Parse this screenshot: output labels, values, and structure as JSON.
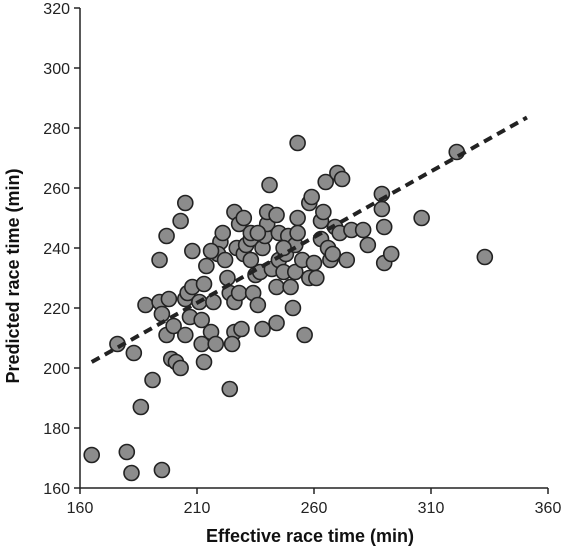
{
  "chart_data": {
    "type": "scatter",
    "title": "",
    "xlabel": "Effective race time (min)",
    "ylabel": "Predicted race time (min)",
    "xlim": [
      160,
      360
    ],
    "ylim": [
      160,
      320
    ],
    "xticks": [
      160,
      210,
      260,
      310,
      360
    ],
    "yticks": [
      160,
      180,
      200,
      220,
      240,
      260,
      280,
      300,
      320
    ],
    "grid": false,
    "legend": "none",
    "point_color": "#8c8c8c",
    "point_edge_color": "#222222",
    "trendline": {
      "style": "dashed",
      "x": [
        165,
        351
      ],
      "y": [
        202,
        283.5
      ]
    },
    "points": [
      {
        "x": 165,
        "y": 171
      },
      {
        "x": 180,
        "y": 172
      },
      {
        "x": 182,
        "y": 165
      },
      {
        "x": 195,
        "y": 166
      },
      {
        "x": 186,
        "y": 187
      },
      {
        "x": 191,
        "y": 196
      },
      {
        "x": 183,
        "y": 205
      },
      {
        "x": 176,
        "y": 208
      },
      {
        "x": 188,
        "y": 221
      },
      {
        "x": 194,
        "y": 222
      },
      {
        "x": 195,
        "y": 218
      },
      {
        "x": 198,
        "y": 223
      },
      {
        "x": 197,
        "y": 211
      },
      {
        "x": 200,
        "y": 214
      },
      {
        "x": 194,
        "y": 236
      },
      {
        "x": 197,
        "y": 244
      },
      {
        "x": 203,
        "y": 249
      },
      {
        "x": 205,
        "y": 255
      },
      {
        "x": 199,
        "y": 203
      },
      {
        "x": 201,
        "y": 202
      },
      {
        "x": 203,
        "y": 200
      },
      {
        "x": 205,
        "y": 211
      },
      {
        "x": 205,
        "y": 223
      },
      {
        "x": 206,
        "y": 225
      },
      {
        "x": 207,
        "y": 217
      },
      {
        "x": 208,
        "y": 227
      },
      {
        "x": 208,
        "y": 239
      },
      {
        "x": 211,
        "y": 222
      },
      {
        "x": 212,
        "y": 216
      },
      {
        "x": 213,
        "y": 228
      },
      {
        "x": 214,
        "y": 234
      },
      {
        "x": 212,
        "y": 208
      },
      {
        "x": 213,
        "y": 202
      },
      {
        "x": 216,
        "y": 212
      },
      {
        "x": 217,
        "y": 222
      },
      {
        "x": 218,
        "y": 208
      },
      {
        "x": 220,
        "y": 242
      },
      {
        "x": 219,
        "y": 238
      },
      {
        "x": 221,
        "y": 245
      },
      {
        "x": 222,
        "y": 236
      },
      {
        "x": 223,
        "y": 230
      },
      {
        "x": 224,
        "y": 225
      },
      {
        "x": 226,
        "y": 222
      },
      {
        "x": 226,
        "y": 212
      },
      {
        "x": 225,
        "y": 208
      },
      {
        "x": 224,
        "y": 193
      },
      {
        "x": 226,
        "y": 252
      },
      {
        "x": 227,
        "y": 240
      },
      {
        "x": 228,
        "y": 248
      },
      {
        "x": 230,
        "y": 238
      },
      {
        "x": 231,
        "y": 241
      },
      {
        "x": 233,
        "y": 243
      },
      {
        "x": 233,
        "y": 236
      },
      {
        "x": 229,
        "y": 213
      },
      {
        "x": 230,
        "y": 250
      },
      {
        "x": 228,
        "y": 225
      },
      {
        "x": 234,
        "y": 225
      },
      {
        "x": 235,
        "y": 231
      },
      {
        "x": 236,
        "y": 221
      },
      {
        "x": 237,
        "y": 232
      },
      {
        "x": 238,
        "y": 240
      },
      {
        "x": 239,
        "y": 244
      },
      {
        "x": 240,
        "y": 248
      },
      {
        "x": 240,
        "y": 252
      },
      {
        "x": 241,
        "y": 261
      },
      {
        "x": 242,
        "y": 233
      },
      {
        "x": 238,
        "y": 213
      },
      {
        "x": 244,
        "y": 215
      },
      {
        "x": 244,
        "y": 227
      },
      {
        "x": 245,
        "y": 236
      },
      {
        "x": 244,
        "y": 251
      },
      {
        "x": 245,
        "y": 245
      },
      {
        "x": 247,
        "y": 232
      },
      {
        "x": 248,
        "y": 238
      },
      {
        "x": 249,
        "y": 244
      },
      {
        "x": 250,
        "y": 227
      },
      {
        "x": 251,
        "y": 220
      },
      {
        "x": 252,
        "y": 232
      },
      {
        "x": 252,
        "y": 241
      },
      {
        "x": 253,
        "y": 250
      },
      {
        "x": 253,
        "y": 245
      },
      {
        "x": 253,
        "y": 275
      },
      {
        "x": 255,
        "y": 236
      },
      {
        "x": 256,
        "y": 211
      },
      {
        "x": 258,
        "y": 230
      },
      {
        "x": 258,
        "y": 255
      },
      {
        "x": 259,
        "y": 257
      },
      {
        "x": 260,
        "y": 235
      },
      {
        "x": 261,
        "y": 230
      },
      {
        "x": 263,
        "y": 243
      },
      {
        "x": 263,
        "y": 249
      },
      {
        "x": 264,
        "y": 252
      },
      {
        "x": 265,
        "y": 262
      },
      {
        "x": 266,
        "y": 240
      },
      {
        "x": 267,
        "y": 236
      },
      {
        "x": 268,
        "y": 238
      },
      {
        "x": 269,
        "y": 247
      },
      {
        "x": 270,
        "y": 265
      },
      {
        "x": 272,
        "y": 263
      },
      {
        "x": 271,
        "y": 245
      },
      {
        "x": 274,
        "y": 236
      },
      {
        "x": 276,
        "y": 246
      },
      {
        "x": 281,
        "y": 246
      },
      {
        "x": 283,
        "y": 241
      },
      {
        "x": 289,
        "y": 253
      },
      {
        "x": 290,
        "y": 247
      },
      {
        "x": 289,
        "y": 258
      },
      {
        "x": 290,
        "y": 235
      },
      {
        "x": 293,
        "y": 238
      },
      {
        "x": 306,
        "y": 250
      },
      {
        "x": 321,
        "y": 272
      },
      {
        "x": 333,
        "y": 237
      },
      {
        "x": 233,
        "y": 245
      },
      {
        "x": 247,
        "y": 240
      },
      {
        "x": 236,
        "y": 245
      },
      {
        "x": 216,
        "y": 239
      }
    ]
  }
}
